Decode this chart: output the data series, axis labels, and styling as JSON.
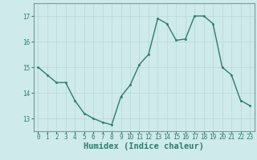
{
  "x": [
    0,
    1,
    2,
    3,
    4,
    5,
    6,
    7,
    8,
    9,
    10,
    11,
    12,
    13,
    14,
    15,
    16,
    17,
    18,
    19,
    20,
    21,
    22,
    23
  ],
  "y": [
    15.0,
    14.7,
    14.4,
    14.4,
    13.7,
    13.2,
    13.0,
    12.85,
    12.75,
    13.85,
    14.3,
    15.1,
    15.5,
    16.9,
    16.7,
    16.05,
    16.1,
    17.0,
    17.0,
    16.7,
    15.0,
    14.7,
    13.7,
    13.5
  ],
  "line_color": "#2E7D6B",
  "marker": "o",
  "marker_size": 1.8,
  "bg_color": "#CEEAEA",
  "grid_color": "#B8D8D8",
  "xlabel": "Humidex (Indice chaleur)",
  "xlabel_fontsize": 7.5,
  "yticks": [
    13,
    14,
    15,
    16,
    17
  ],
  "xticks": [
    0,
    1,
    2,
    3,
    4,
    5,
    6,
    7,
    8,
    9,
    10,
    11,
    12,
    13,
    14,
    15,
    16,
    17,
    18,
    19,
    20,
    21,
    22,
    23
  ],
  "ylim": [
    12.5,
    17.5
  ],
  "xlim": [
    -0.5,
    23.5
  ],
  "tick_fontsize": 5.5,
  "line_width": 1.0,
  "spine_color": "#7A9A9A"
}
